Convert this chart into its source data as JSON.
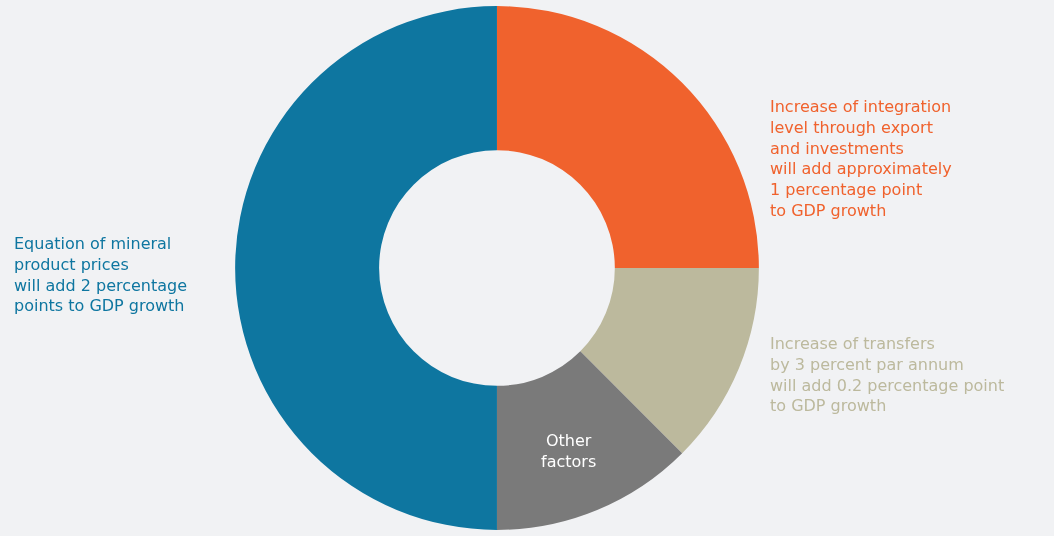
{
  "chart_data": {
    "type": "donut",
    "categories": [
      "Increase of integration\nlevel through export\nand investments\nwill add approximately\n1 percentage point\nto GDP growth",
      "Increase of transfers\nby 3 percent par annum\nwill add 0.2 percentage point\nto GDP growth",
      "Other\nfactors",
      "Equation of mineral\nproduct prices\nwill add 2 percentage\npoints to GDP growth"
    ],
    "values": [
      25,
      12.5,
      12.5,
      50
    ],
    "colors": [
      "#f0622d",
      "#bcb99d",
      "#7a7a7a",
      "#0e76a0"
    ],
    "legend": false
  }
}
